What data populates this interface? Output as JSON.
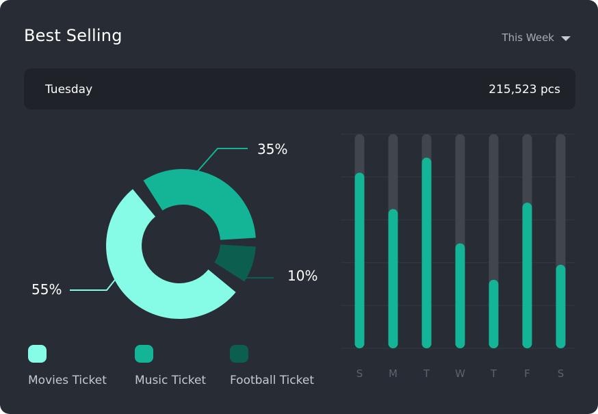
{
  "header": {
    "title": "Best Selling",
    "period_label": "This Week"
  },
  "summary": {
    "day": "Tuesday",
    "quantity": "215,523 pcs"
  },
  "colors": {
    "background": "#282c34",
    "summary_bg": "#1f2329",
    "movies": "#86fce6",
    "music": "#14b496",
    "football": "#0c5f4e",
    "bar_track": "#41454d"
  },
  "chart_data": [
    {
      "type": "pie",
      "style": "donut",
      "labels": [
        "Movies Ticket",
        "Music Ticket",
        "Football Ticket"
      ],
      "values": [
        55,
        35,
        10
      ],
      "value_labels": [
        "55%",
        "35%",
        "10%"
      ],
      "legend": "bottom"
    },
    {
      "type": "bar",
      "categories": [
        "S",
        "M",
        "T",
        "W",
        "T",
        "F",
        "S"
      ],
      "values": [
        0.82,
        0.65,
        0.89,
        0.49,
        0.32,
        0.68,
        0.39
      ],
      "ylim": [
        0,
        1
      ],
      "grid": true
    }
  ],
  "legend": {
    "items": [
      {
        "label": "Movies Ticket"
      },
      {
        "label": "Music Ticket"
      },
      {
        "label": "Football Ticket"
      }
    ]
  }
}
